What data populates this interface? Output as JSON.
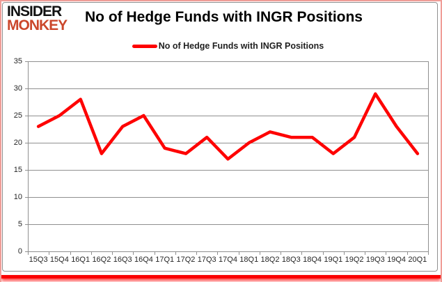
{
  "logo": {
    "line1": "INSIDER",
    "line2": "MONKEY",
    "accent_color": "#cb472b"
  },
  "header": {
    "title": "No of Hedge Funds with INGR Positions"
  },
  "legend": {
    "label": "No of Hedge Funds with INGR Positions"
  },
  "chart_data": {
    "type": "line",
    "title": "No of Hedge Funds with INGR Positions",
    "categories": [
      "15Q3",
      "15Q4",
      "16Q1",
      "16Q2",
      "16Q3",
      "16Q4",
      "17Q1",
      "17Q2",
      "17Q3",
      "17Q4",
      "18Q1",
      "18Q2",
      "18Q3",
      "18Q4",
      "19Q1",
      "19Q2",
      "19Q3",
      "19Q4",
      "20Q1"
    ],
    "series": [
      {
        "name": "No of Hedge Funds with INGR Positions",
        "color": "#fe0000",
        "values": [
          23,
          25,
          28,
          18,
          23,
          25,
          19,
          18,
          21,
          17,
          20,
          22,
          21,
          21,
          18,
          21,
          29,
          23,
          18
        ]
      }
    ],
    "xlabel": "",
    "ylabel": "",
    "ylim": [
      0,
      35
    ],
    "yticks": [
      0,
      5,
      10,
      15,
      20,
      25,
      30,
      35
    ],
    "grid": true,
    "legend_position": "top"
  },
  "colors": {
    "line": "#fe0000",
    "grid": "#8f8f8f",
    "frame": "#8f8f8f",
    "axis_text": "#262626",
    "outer_border": "#f09d97",
    "bottom_bar": "#fb0000"
  }
}
